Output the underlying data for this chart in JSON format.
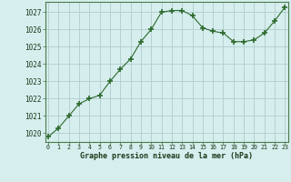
{
  "x": [
    0,
    1,
    2,
    3,
    4,
    5,
    6,
    7,
    8,
    9,
    10,
    11,
    12,
    13,
    14,
    15,
    16,
    17,
    18,
    19,
    20,
    21,
    22,
    23
  ],
  "y": [
    1019.8,
    1020.3,
    1021.0,
    1021.7,
    1022.0,
    1022.2,
    1023.0,
    1023.7,
    1024.3,
    1025.3,
    1026.0,
    1027.0,
    1027.1,
    1027.1,
    1026.8,
    1026.1,
    1025.9,
    1025.8,
    1025.3,
    1025.3,
    1025.4,
    1025.8,
    1026.5,
    1027.3
  ],
  "line_color": "#2d6a2d",
  "marker": "+",
  "marker_size": 4,
  "bg_color": "#d6eeee",
  "grid_color": "#b0cccc",
  "xlabel": "Graphe pression niveau de la mer (hPa)",
  "xlabel_color": "#1a3a1a",
  "ylabel_ticks": [
    1020,
    1021,
    1022,
    1023,
    1024,
    1025,
    1026,
    1027
  ],
  "xlim": [
    -0.3,
    23.3
  ],
  "ylim": [
    1019.5,
    1027.6
  ],
  "xticks": [
    0,
    1,
    2,
    3,
    4,
    5,
    6,
    7,
    8,
    9,
    10,
    11,
    12,
    13,
    14,
    15,
    16,
    17,
    18,
    19,
    20,
    21,
    22,
    23
  ]
}
